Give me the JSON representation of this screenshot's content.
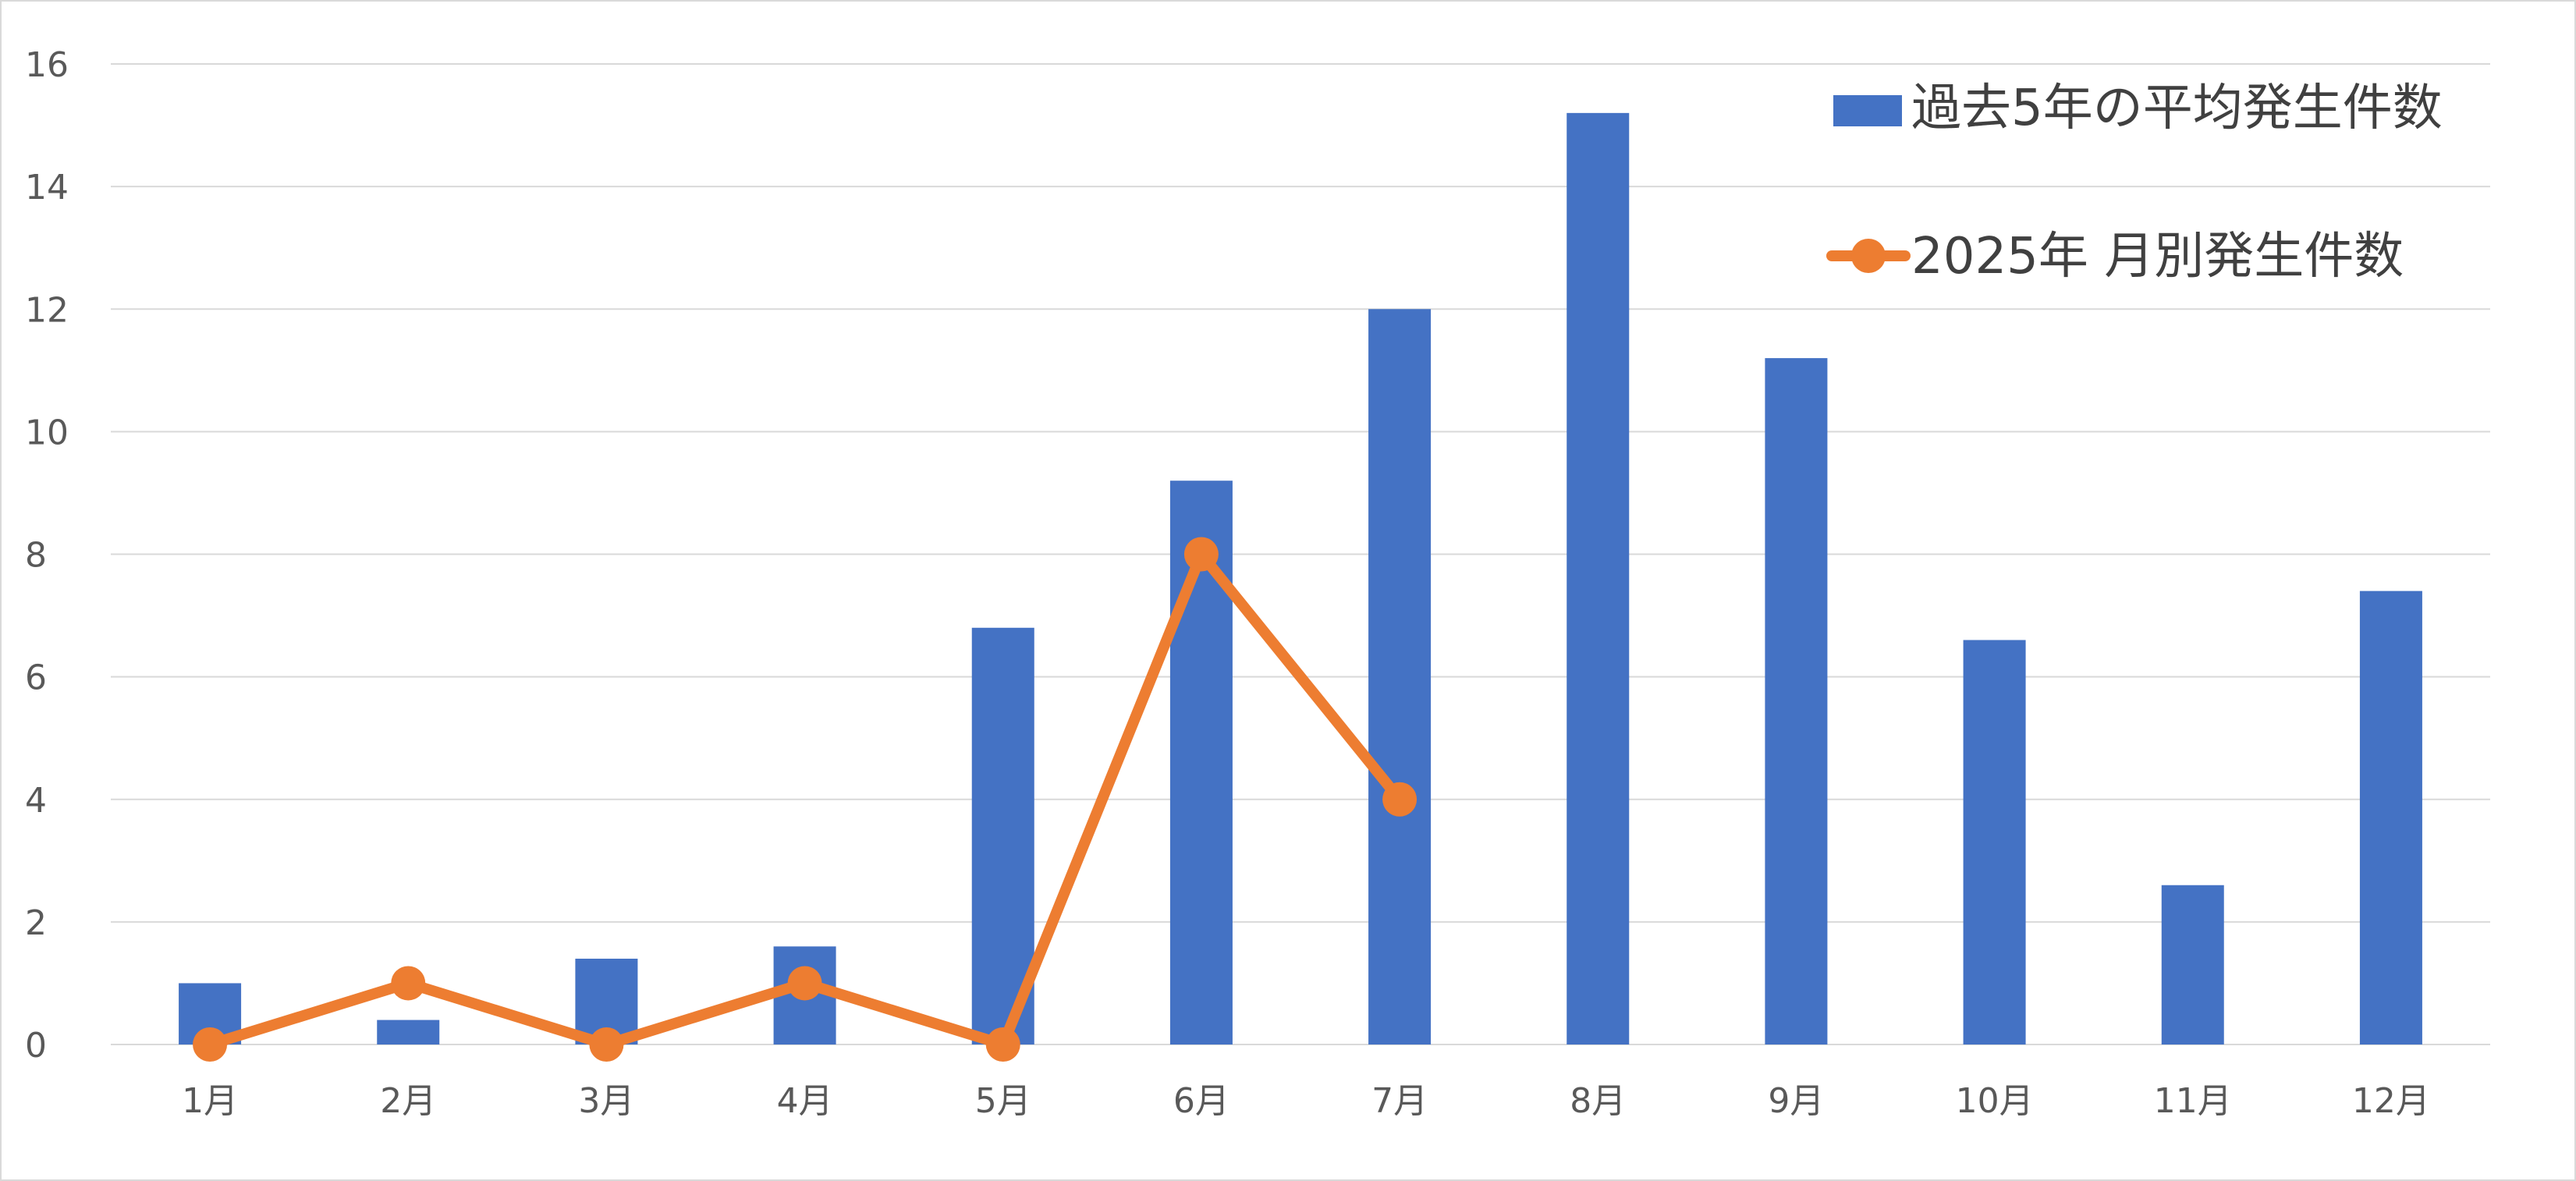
{
  "chart_data": {
    "type": "bar",
    "categories": [
      "1月",
      "2月",
      "3月",
      "4月",
      "5月",
      "6月",
      "7月",
      "8月",
      "9月",
      "10月",
      "11月",
      "12月"
    ],
    "series": [
      {
        "name": "過去5年の平均発生件数",
        "type": "bar",
        "color": "#4472C4",
        "values": [
          1.0,
          0.4,
          1.4,
          1.6,
          6.8,
          9.2,
          12.0,
          15.2,
          11.2,
          6.6,
          2.6,
          7.4
        ]
      },
      {
        "name": "2025年 月別発生件数",
        "type": "line",
        "color": "#ED7D31",
        "marker": "circle",
        "values": [
          0,
          1,
          0,
          1,
          0,
          8,
          4,
          null,
          null,
          null,
          null,
          null
        ]
      }
    ],
    "yticks": [
      "0",
      "2",
      "4",
      "6",
      "8",
      "10",
      "12",
      "14",
      "16"
    ],
    "ylim": [
      0,
      16
    ],
    "grid": true,
    "legend_position": "top-right"
  }
}
